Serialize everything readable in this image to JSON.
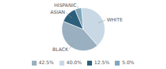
{
  "chart_data": {
    "type": "pie",
    "categories": [
      "WHITE",
      "BLACK",
      "ASIAN",
      "HISPANIC"
    ],
    "values": [
      40.0,
      42.5,
      12.5,
      5.0
    ],
    "value_labels": [
      "40.0%",
      "42.5%",
      "12.5%",
      "5.0%"
    ],
    "colors": [
      "#c8d8e4",
      "#9ab0c0",
      "#2e5f7a",
      "#7fa8bc"
    ],
    "legend": "bottom"
  }
}
